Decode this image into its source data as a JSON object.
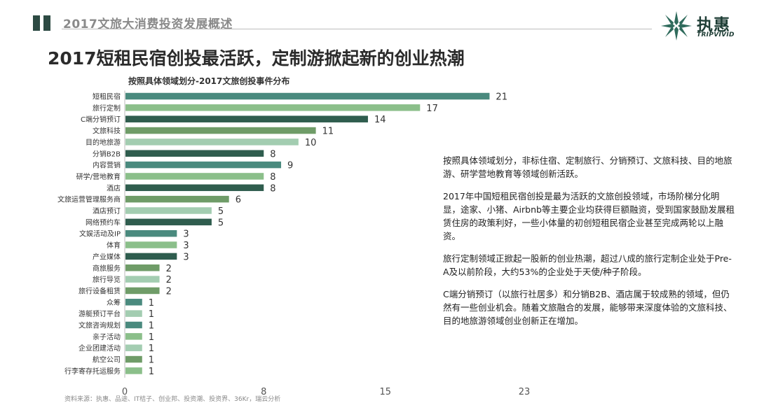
{
  "header": {
    "title": "2017文旅大消费投资发展概述"
  },
  "logo": {
    "name_cn": "执惠",
    "name_en": "TRIPVIVID",
    "mark_icon": "starburst-logo-icon"
  },
  "page_title": "2017短租民宿创投最活跃，定制游掀起新的创业热潮",
  "colors": {
    "dark": "#2f5d4e",
    "teal": "#4a8a7e",
    "light": "#8bbf8a",
    "pale": "#a8cfae",
    "header": "#2d4a43"
  },
  "chart_data": {
    "type": "bar",
    "orientation": "horizontal",
    "title": "按照具体领域划分-2017文旅创投事件分布",
    "categories": [
      "短租民宿",
      "旅行定制",
      "C端分销预订",
      "文旅科技",
      "目的地旅游",
      "分销B2B",
      "内容营销",
      "研学/营地教育",
      "酒店",
      "文旅运营管理服务商",
      "酒店预订",
      "网络预约车",
      "文娱活动及IP",
      "体育",
      "产业媒体",
      "商旅服务",
      "旅行导览",
      "旅行设备租赁",
      "众筹",
      "游艇预订平台",
      "文旅咨询规划",
      "亲子活动",
      "企业团建活动",
      "航空公司",
      "行李寄存托运服务"
    ],
    "values": [
      21,
      17,
      14,
      11,
      10,
      8,
      9,
      8,
      8,
      6,
      5,
      5,
      3,
      3,
      3,
      2,
      2,
      2,
      1,
      1,
      1,
      1,
      1,
      1,
      1
    ],
    "bar_colors": [
      "#4a8a7e",
      "#8bbf8a",
      "#2f5d4e",
      "#6f9c68",
      "#a3cdb1",
      "#2f5d4e",
      "#4a8a7e",
      "#8bbf8a",
      "#2f5d4e",
      "#6f9c68",
      "#a3cdb1",
      "#2f5d4e",
      "#4a8a7e",
      "#8bbf8a",
      "#2f5d4e",
      "#6f9c68",
      "#a3cdb1",
      "#6f9c68",
      "#4a8a7e",
      "#a3cdb1",
      "#4a8a7e",
      "#8bbf8a",
      "#a3cdb1",
      "#6f9c68",
      "#8bbf8a"
    ],
    "xlim": [
      0,
      23
    ],
    "xticks": [
      "0",
      "8",
      "15",
      "23"
    ],
    "xtick_values": [
      0,
      8,
      15,
      23
    ],
    "grid": false
  },
  "side_paragraphs": [
    "按照具体领域划分，非标住宿、定制旅行、分销预订、文旅科技、目的地旅游、研学营地教育等领域创新活跃。",
    "2017年中国短租民宿创投是最为活跃的文旅创投领域，市场阶梯分化明显，途家、小猪、Airbnb等主要企业均获得巨额融资，受到国家鼓励发展租赁住房的政策利好，一些小体量的初创短租民宿企业甚至完成两轮以上融资。",
    "旅行定制领域正掀起一股新的创业热潮，超过八成的旅行定制企业处于Pre-A及以前阶段，大约53%的企业处于天使/种子阶段。",
    "C端分销预订（以旅行社居多）和分销B2B、酒店属于较成熟的领域，但仍然有一些创业机会。随着文旅融合的发展，能够带来深度体验的文旅科技、目的地旅游领域创业创新正在增加。"
  ],
  "source": "资料来源：执惠、品途、IT桔子、创业邦、投资潮、投资界、36Kr，瑞云分析"
}
